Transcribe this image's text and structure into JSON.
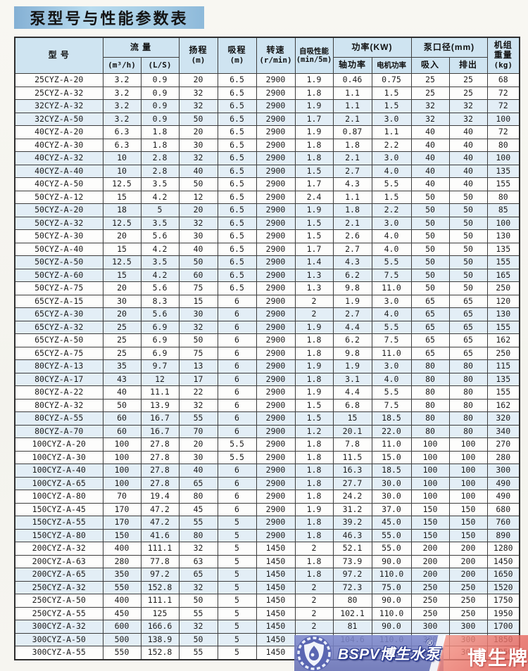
{
  "page": {
    "title": "泵型号与性能参数表"
  },
  "table": {
    "columns": {
      "model": "型  号",
      "flow_group": "流  量",
      "flow_m3h": "(m³/h)",
      "flow_ls": "(L/S)",
      "head_l1": "扬程",
      "head_l2": "(m)",
      "suction_l1": "吸程",
      "suction_l2": "(m)",
      "speed_l1": "转速",
      "speed_l2": "(r/min)",
      "selfprime_l1": "自吸性能",
      "selfprime_l2": "(min/5m)",
      "power_group": "功率(KW)",
      "shaft_power": "轴功率",
      "motor_power": "电机功率",
      "port_group": "泵口径(mm)",
      "inlet": "吸入",
      "outlet": "排出",
      "weight_l1": "机组",
      "weight_l2": "重量",
      "weight_l3": "(kg)"
    },
    "rows": [
      [
        "25CYZ-A-20",
        "3.2",
        "0.9",
        "20",
        "6.5",
        "2900",
        "1.9",
        "0.46",
        "0.75",
        "25",
        "25",
        "68"
      ],
      [
        "25CYZ-A-32",
        "3.2",
        "0.9",
        "32",
        "6.5",
        "2900",
        "1.8",
        "1.1",
        "1.5",
        "25",
        "25",
        "72"
      ],
      [
        "32CYZ-A-32",
        "3.2",
        "0.9",
        "32",
        "6.5",
        "2900",
        "1.9",
        "1.1",
        "1.5",
        "32",
        "32",
        "72"
      ],
      [
        "32CYZ-A-50",
        "3.2",
        "0.9",
        "50",
        "6.5",
        "2900",
        "1.7",
        "2.1",
        "3.0",
        "32",
        "32",
        "100"
      ],
      [
        "40CYZ-A-20",
        "6.3",
        "1.8",
        "20",
        "6.5",
        "2900",
        "1.9",
        "0.87",
        "1.1",
        "40",
        "40",
        "72"
      ],
      [
        "40CYZ-A-30",
        "6.3",
        "1.8",
        "30",
        "6.5",
        "2900",
        "1.8",
        "1.8",
        "2.2",
        "40",
        "40",
        "80"
      ],
      [
        "40CYZ-A-32",
        "10",
        "2.8",
        "32",
        "6.5",
        "2900",
        "1.8",
        "2.1",
        "3.0",
        "40",
        "40",
        "100"
      ],
      [
        "40CYZ-A-40",
        "10",
        "2.8",
        "40",
        "6.5",
        "2900",
        "1.5",
        "2.7",
        "4.0",
        "40",
        "40",
        "135"
      ],
      [
        "40CYZ-A-50",
        "12.5",
        "3.5",
        "50",
        "6.5",
        "2900",
        "1.7",
        "4.3",
        "5.5",
        "40",
        "40",
        "155"
      ],
      [
        "50CYZ-A-12",
        "15",
        "4.2",
        "12",
        "6.5",
        "2900",
        "2.4",
        "1.1",
        "1.5",
        "50",
        "50",
        "80"
      ],
      [
        "50CYZ-A-20",
        "18",
        "5",
        "20",
        "6.5",
        "2900",
        "1.9",
        "1.8",
        "2.2",
        "50",
        "50",
        "85"
      ],
      [
        "50CYZ-A-32",
        "12.5",
        "3.5",
        "32",
        "6.5",
        "2900",
        "1.5",
        "2.1",
        "3.0",
        "50",
        "50",
        "100"
      ],
      [
        "50CYZ-A-30",
        "20",
        "5.6",
        "30",
        "6.5",
        "2900",
        "1.5",
        "2.6",
        "4.0",
        "50",
        "50",
        "130"
      ],
      [
        "50CYZ-A-40",
        "15",
        "4.2",
        "40",
        "6.5",
        "2900",
        "1.7",
        "2.7",
        "4.0",
        "50",
        "50",
        "135"
      ],
      [
        "50CYZ-A-50",
        "12.5",
        "3.5",
        "50",
        "6.5",
        "2900",
        "1.4",
        "4.3",
        "5.5",
        "50",
        "50",
        "155"
      ],
      [
        "50CYZ-A-60",
        "15",
        "4.2",
        "60",
        "6.5",
        "2900",
        "1.3",
        "6.2",
        "7.5",
        "50",
        "50",
        "165"
      ],
      [
        "50CYZ-A-75",
        "20",
        "5.6",
        "75",
        "6.5",
        "2900",
        "1.3",
        "9.8",
        "11.0",
        "50",
        "50",
        "250"
      ],
      [
        "65CYZ-A-15",
        "30",
        "8.3",
        "15",
        "6",
        "2900",
        "2",
        "1.9",
        "3.0",
        "65",
        "65",
        "120"
      ],
      [
        "65CYZ-A-30",
        "20",
        "5.6",
        "30",
        "6",
        "2900",
        "2",
        "2.7",
        "4.0",
        "65",
        "65",
        "130"
      ],
      [
        "65CYZ-A-32",
        "25",
        "6.9",
        "32",
        "6",
        "2900",
        "1.9",
        "4.4",
        "5.5",
        "65",
        "65",
        "155"
      ],
      [
        "65CYZ-A-50",
        "25",
        "6.9",
        "50",
        "6",
        "2900",
        "1.8",
        "6.2",
        "7.5",
        "65",
        "65",
        "162"
      ],
      [
        "65CYZ-A-75",
        "25",
        "6.9",
        "75",
        "6",
        "2900",
        "1.8",
        "9.8",
        "11.0",
        "65",
        "65",
        "250"
      ],
      [
        "80CYZ-A-13",
        "35",
        "9.7",
        "13",
        "6",
        "2900",
        "1.9",
        "1.9",
        "3.0",
        "80",
        "80",
        "115"
      ],
      [
        "80CYZ-A-17",
        "43",
        "12",
        "17",
        "6",
        "2900",
        "1.8",
        "3.1",
        "4.0",
        "80",
        "80",
        "135"
      ],
      [
        "80CYZ-A-22",
        "40",
        "11.1",
        "22",
        "6",
        "2900",
        "1.9",
        "4.4",
        "5.5",
        "80",
        "80",
        "155"
      ],
      [
        "80CYZ-A-32",
        "50",
        "13.9",
        "32",
        "6",
        "2900",
        "1.5",
        "6.8",
        "7.5",
        "80",
        "80",
        "162"
      ],
      [
        "80CYZ-A-55",
        "60",
        "16.7",
        "55",
        "6",
        "2900",
        "1.5",
        "15",
        "18.5",
        "80",
        "80",
        "320"
      ],
      [
        "80CYZ-A-70",
        "60",
        "16.7",
        "70",
        "6",
        "2900",
        "1.2",
        "20.1",
        "22.0",
        "80",
        "80",
        "340"
      ],
      [
        "100CYZ-A-20",
        "100",
        "27.8",
        "20",
        "5.5",
        "2900",
        "1.8",
        "7.8",
        "11.0",
        "100",
        "100",
        "270"
      ],
      [
        "100CYZ-A-30",
        "100",
        "27.8",
        "30",
        "5.5",
        "2900",
        "1.8",
        "11.5",
        "15.0",
        "100",
        "100",
        "280"
      ],
      [
        "100CYZ-A-40",
        "100",
        "27.8",
        "40",
        "6",
        "2900",
        "1.8",
        "16.3",
        "18.5",
        "100",
        "100",
        "300"
      ],
      [
        "100CYZ-A-65",
        "100",
        "27.8",
        "65",
        "6",
        "2900",
        "1.8",
        "27.7",
        "30.0",
        "100",
        "100",
        "490"
      ],
      [
        "100CYZ-A-80",
        "70",
        "19.4",
        "80",
        "6",
        "2900",
        "1.8",
        "24.2",
        "30.0",
        "100",
        "100",
        "490"
      ],
      [
        "150CYZ-A-45",
        "170",
        "47.2",
        "45",
        "6",
        "2900",
        "1.9",
        "31.2",
        "37.0",
        "150",
        "150",
        "680"
      ],
      [
        "150CYZ-A-55",
        "170",
        "47.2",
        "55",
        "5",
        "2900",
        "1.8",
        "39.2",
        "45.0",
        "150",
        "150",
        "760"
      ],
      [
        "150CYZ-A-80",
        "150",
        "41.6",
        "80",
        "5",
        "2900",
        "1.8",
        "46.3",
        "55.0",
        "150",
        "150",
        "890"
      ],
      [
        "200CYZ-A-32",
        "400",
        "111.1",
        "32",
        "5",
        "1450",
        "2",
        "52.1",
        "55.0",
        "200",
        "200",
        "1280"
      ],
      [
        "200CYZ-A-63",
        "280",
        "77.8",
        "63",
        "5",
        "1450",
        "1.8",
        "73.9",
        "90.0",
        "200",
        "200",
        "1450"
      ],
      [
        "200CYZ-A-65",
        "350",
        "97.2",
        "65",
        "5",
        "1450",
        "1.8",
        "97.2",
        "110.0",
        "200",
        "200",
        "1650"
      ],
      [
        "250CYZ-A-32",
        "550",
        "152.8",
        "32",
        "5",
        "1450",
        "2",
        "72.3",
        "75.0",
        "250",
        "250",
        "1520"
      ],
      [
        "250CYZ-A-50",
        "400",
        "111.1",
        "50",
        "5",
        "1450",
        "2",
        "80",
        "90.0",
        "250",
        "250",
        "1750"
      ],
      [
        "250CYZ-A-55",
        "450",
        "125",
        "55",
        "5",
        "1450",
        "2",
        "102.1",
        "110.0",
        "250",
        "250",
        "1950"
      ],
      [
        "300CYZ-A-32",
        "600",
        "166.6",
        "32",
        "5",
        "1450",
        "2",
        "81",
        "90.0",
        "300",
        "300",
        "1700"
      ],
      [
        "300CYZ-A-50",
        "500",
        "138.9",
        "50",
        "5",
        "1450",
        "2",
        "104.6",
        "110.0",
        "300",
        "300",
        "1850"
      ],
      [
        "300CYZ-A-55",
        "550",
        "152.8",
        "55",
        "5",
        "1450",
        "2",
        "117.6",
        "132.0",
        "300",
        "300",
        "2050"
      ]
    ]
  },
  "watermark": {
    "brand": "BSPV博生水泵",
    "reg_mark": "®",
    "badge_label": "博生牌"
  },
  "colors": {
    "title_blue": "#a5cce4",
    "header_blue": "#cfe4f1",
    "row_tint": "#e3eef6",
    "banner_blue": "#6e7ab6",
    "banner_red": "#e6675f"
  }
}
